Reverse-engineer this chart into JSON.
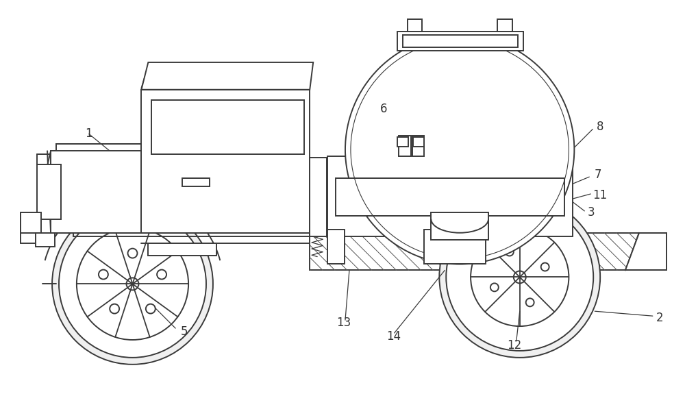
{
  "bg_color": "#ffffff",
  "line_color": "#3a3a3a",
  "line_width": 1.4,
  "label_color": "#333333",
  "label_fontsize": 12,
  "fig_width": 10.0,
  "fig_height": 5.75
}
